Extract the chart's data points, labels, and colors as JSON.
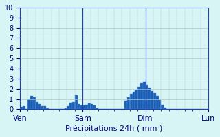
{
  "title": "Précipitations 24h ( mm )",
  "background_color": "#d8f5f5",
  "bar_color": "#1a5fb4",
  "bar_edge_color": "#4488dd",
  "grid_color": "#b0c8c8",
  "axis_line_color": "#2244aa",
  "ylim": [
    0,
    10
  ],
  "yticks": [
    0,
    1,
    2,
    3,
    4,
    5,
    6,
    7,
    8,
    9,
    10
  ],
  "day_labels": [
    "Ven",
    "Sam",
    "Dim",
    "Lun"
  ],
  "day_positions": [
    0,
    24,
    48,
    72
  ],
  "values": [
    0.25,
    0.3,
    0.0,
    1.0,
    1.3,
    1.2,
    0.7,
    0.5,
    0.3,
    0.3,
    0.1,
    0.0,
    0.0,
    0.0,
    0.0,
    0.0,
    0.0,
    0.1,
    0.3,
    0.6,
    0.7,
    1.4,
    0.5,
    0.35,
    0.35,
    0.45,
    0.55,
    0.5,
    0.35,
    0.1,
    0.0,
    0.0,
    0.0,
    0.0,
    0.0,
    0.0,
    0.0,
    0.0,
    0.0,
    0.0,
    0.8,
    1.2,
    1.5,
    1.7,
    1.9,
    2.2,
    2.6,
    2.7,
    2.4,
    2.1,
    1.8,
    1.6,
    1.3,
    0.9,
    0.4,
    0.15,
    0.0,
    0.0,
    0.0,
    0.0,
    0.0,
    0.0,
    0.0,
    0.0,
    0.0,
    0.0,
    0.0,
    0.0,
    0.0,
    0.0,
    0.0,
    0.0
  ],
  "xlabel_color": "#000080",
  "tick_color": "#000080",
  "ylabel_color": "#000080",
  "fontsize_ticks": 7,
  "fontsize_xlabel": 8
}
